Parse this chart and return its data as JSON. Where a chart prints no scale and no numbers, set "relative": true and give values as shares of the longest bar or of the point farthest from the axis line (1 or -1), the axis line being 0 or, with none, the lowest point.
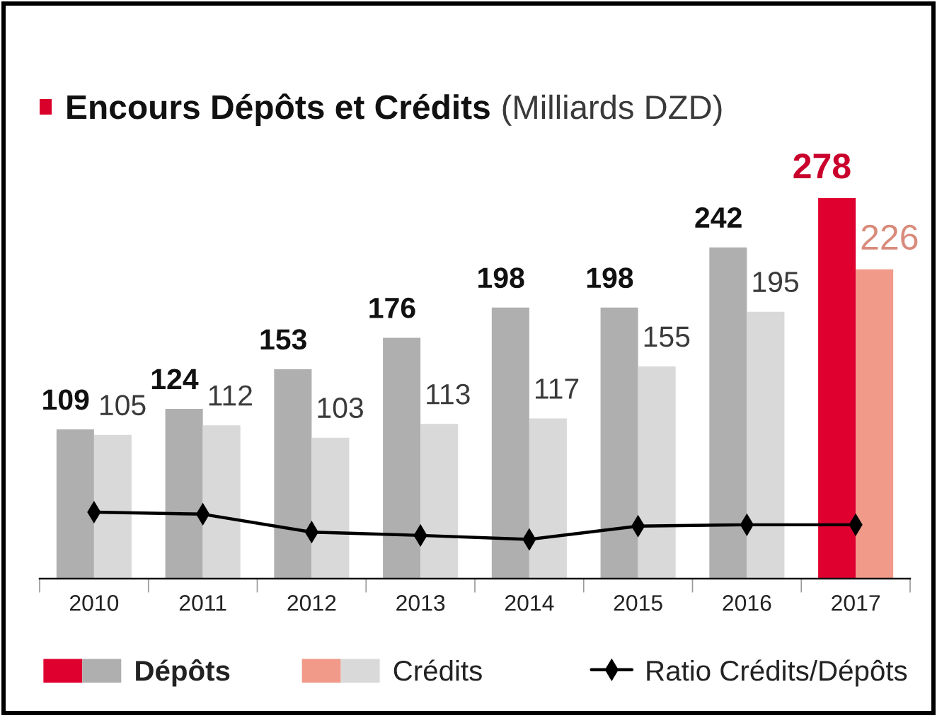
{
  "chart_data": [
    {
      "type": "bar",
      "title": "Encours Dépôts et Crédits",
      "subtitle": "(Milliards DZD)",
      "categories": [
        "2010",
        "2011",
        "2012",
        "2013",
        "2014",
        "2015",
        "2016",
        "2017"
      ],
      "series": [
        {
          "name": "Dépôts",
          "colors": [
            "#afafaf",
            "#afafaf",
            "#afafaf",
            "#afafaf",
            "#afafaf",
            "#afafaf",
            "#afafaf",
            "#df0030"
          ],
          "values": [
            109,
            124,
            153,
            176,
            198,
            198,
            242,
            278
          ],
          "value_labels": [
            "109",
            "124",
            "153",
            "176",
            "198",
            "198",
            "242",
            "278"
          ]
        },
        {
          "name": "Crédits",
          "colors": [
            "#d9d9da",
            "#d9d9da",
            "#d9d9da",
            "#d9d9da",
            "#d9d9da",
            "#d9d9da",
            "#d9d9da",
            "#f19a89"
          ],
          "values": [
            105,
            112,
            103,
            113,
            117,
            155,
            195,
            226
          ],
          "value_labels": [
            "105",
            "112",
            "103",
            "113",
            "117",
            "155",
            "195",
            "226"
          ]
        }
      ],
      "legend": "bottom",
      "tick_labels": "x"
    },
    {
      "type": "line",
      "relative": true,
      "categories": [
        "2010",
        "2011",
        "2012",
        "2013",
        "2014",
        "2015",
        "2016",
        "2017"
      ],
      "series": [
        {
          "name": "Ratio Crédits/Dépôts",
          "color": "#000000",
          "values": [
            1,
            0.97,
            0.7,
            0.65,
            0.59,
            0.79,
            0.81,
            0.81
          ]
        }
      ],
      "marker": "diamond",
      "line_style": "solid",
      "legend": "bottom",
      "tick_labels": false
    }
  ]
}
